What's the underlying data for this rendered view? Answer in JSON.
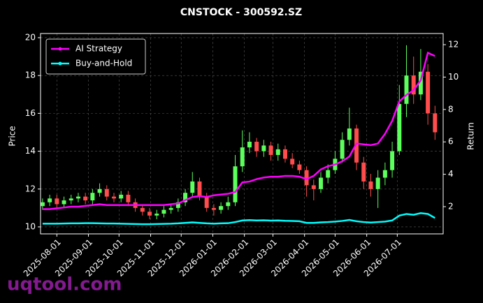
{
  "chart_data": {
    "type": "candlestick",
    "title": "CNSTOCK - 300592.SZ",
    "ylabel": "Price",
    "y2label": "Return",
    "watermark": "uqtool.com",
    "x": [
      "2025-07-18",
      "2025-07-25",
      "2025-08-01",
      "2025-08-08",
      "2025-08-15",
      "2025-08-22",
      "2025-08-29",
      "2025-09-05",
      "2025-09-12",
      "2025-09-19",
      "2025-09-26",
      "2025-10-03",
      "2025-10-10",
      "2025-10-17",
      "2025-10-24",
      "2025-10-31",
      "2025-11-07",
      "2025-11-14",
      "2025-11-21",
      "2025-11-28",
      "2025-12-05",
      "2025-12-12",
      "2025-12-19",
      "2025-12-26",
      "2026-01-02",
      "2026-01-09",
      "2026-01-16",
      "2026-01-23",
      "2026-01-30",
      "2026-02-06",
      "2026-02-13",
      "2026-02-20",
      "2026-02-27",
      "2026-03-06",
      "2026-03-13",
      "2026-03-20",
      "2026-03-27",
      "2026-04-03",
      "2026-04-10",
      "2026-04-17",
      "2026-04-24",
      "2026-05-01",
      "2026-05-08",
      "2026-05-15",
      "2026-05-22",
      "2026-05-29",
      "2026-06-05",
      "2026-06-12",
      "2026-06-19",
      "2026-06-26",
      "2026-07-03",
      "2026-07-10",
      "2026-07-17",
      "2026-07-24",
      "2026-07-31",
      "2026-08-07"
    ],
    "ohlc": {
      "up_color": "#5cff5c",
      "down_color": "#ff4c4c",
      "open": [
        11.1,
        11.3,
        11.5,
        11.2,
        11.4,
        11.5,
        11.6,
        11.4,
        11.8,
        12.0,
        11.6,
        11.5,
        11.7,
        11.3,
        11.0,
        10.8,
        10.6,
        10.7,
        10.9,
        11.0,
        11.3,
        11.8,
        12.4,
        11.6,
        11.0,
        10.9,
        11.1,
        11.3,
        13.2,
        14.2,
        14.5,
        14.0,
        14.3,
        13.8,
        14.1,
        13.6,
        13.3,
        13.0,
        12.2,
        12.0,
        12.6,
        13.0,
        13.6,
        14.6,
        15.2,
        13.4,
        12.4,
        12.0,
        12.6,
        13.0,
        14.0,
        16.5,
        18.0,
        17.0,
        18.2,
        16.0
      ],
      "high": [
        11.5,
        11.7,
        11.7,
        11.6,
        11.7,
        11.8,
        11.8,
        12.0,
        12.3,
        12.2,
        11.8,
        11.9,
        11.9,
        11.5,
        11.2,
        11.0,
        10.9,
        11.1,
        11.2,
        11.5,
        12.0,
        12.9,
        12.6,
        11.8,
        11.2,
        11.3,
        11.6,
        13.8,
        15.1,
        15.0,
        14.7,
        14.6,
        14.5,
        14.4,
        14.3,
        13.9,
        13.5,
        13.2,
        12.5,
        12.9,
        13.3,
        14.0,
        15.0,
        16.3,
        15.4,
        13.7,
        12.8,
        13.0,
        13.4,
        14.5,
        17.5,
        19.6,
        19.0,
        19.4,
        18.6,
        16.4
      ],
      "low": [
        10.9,
        11.1,
        11.0,
        11.0,
        11.2,
        11.3,
        11.2,
        11.2,
        11.6,
        11.4,
        11.3,
        11.3,
        11.1,
        10.8,
        10.6,
        10.4,
        10.4,
        10.5,
        10.7,
        10.8,
        11.1,
        11.6,
        11.4,
        10.8,
        10.6,
        10.7,
        10.9,
        11.1,
        12.9,
        13.9,
        13.7,
        13.7,
        13.5,
        13.5,
        13.4,
        13.1,
        12.8,
        11.6,
        11.4,
        11.8,
        12.3,
        12.8,
        13.4,
        14.3,
        13.0,
        12.0,
        11.6,
        11.0,
        12.2,
        12.6,
        13.8,
        15.8,
        16.5,
        16.7,
        15.4,
        14.6
      ],
      "close": [
        11.3,
        11.5,
        11.2,
        11.4,
        11.5,
        11.6,
        11.4,
        11.8,
        12.0,
        11.6,
        11.5,
        11.7,
        11.3,
        11.0,
        10.8,
        10.6,
        10.7,
        10.9,
        11.0,
        11.3,
        11.8,
        12.4,
        11.6,
        11.0,
        10.9,
        11.1,
        11.3,
        13.2,
        14.2,
        14.5,
        14.0,
        14.3,
        13.8,
        14.1,
        13.6,
        13.3,
        13.0,
        12.2,
        12.0,
        12.6,
        13.0,
        13.6,
        14.6,
        15.2,
        13.4,
        12.4,
        12.0,
        12.6,
        13.0,
        14.0,
        16.5,
        18.0,
        17.0,
        18.2,
        16.0,
        15.0
      ]
    },
    "series": [
      {
        "name": "AI Strategy",
        "color": "#ff00ff",
        "axis": "y2",
        "values": [
          1.85,
          1.85,
          1.9,
          1.95,
          2.0,
          2.0,
          2.05,
          2.1,
          2.15,
          2.1,
          2.1,
          2.1,
          2.1,
          2.1,
          2.1,
          2.1,
          2.1,
          2.1,
          2.15,
          2.2,
          2.4,
          2.6,
          2.65,
          2.6,
          2.7,
          2.75,
          2.8,
          2.9,
          3.5,
          3.55,
          3.7,
          3.8,
          3.85,
          3.85,
          3.9,
          3.9,
          3.85,
          3.7,
          3.9,
          4.3,
          4.5,
          4.6,
          4.8,
          5.1,
          5.9,
          5.85,
          5.8,
          5.9,
          6.5,
          7.3,
          8.5,
          8.9,
          9.2,
          9.8,
          11.5,
          11.3
        ]
      },
      {
        "name": "Buy-and-Hold",
        "color": "#00ffff",
        "axis": "y2",
        "values": [
          0.95,
          0.95,
          0.95,
          0.96,
          0.97,
          0.97,
          0.98,
          0.98,
          0.97,
          0.96,
          0.96,
          0.95,
          0.94,
          0.93,
          0.92,
          0.92,
          0.93,
          0.94,
          0.95,
          0.97,
          1.0,
          1.03,
          1.0,
          0.97,
          0.95,
          0.97,
          0.98,
          1.05,
          1.15,
          1.17,
          1.15,
          1.16,
          1.14,
          1.15,
          1.13,
          1.12,
          1.1,
          1.0,
          1.0,
          1.03,
          1.05,
          1.08,
          1.12,
          1.18,
          1.1,
          1.05,
          1.02,
          1.05,
          1.08,
          1.15,
          1.45,
          1.55,
          1.5,
          1.6,
          1.55,
          1.3
        ]
      }
    ],
    "xlim": [
      "2025-07-16",
      "2026-08-15"
    ],
    "xticks": [
      "2025-08-01",
      "2025-09-01",
      "2025-10-01",
      "2025-11-01",
      "2025-12-01",
      "2026-01-01",
      "2026-02-01",
      "2026-03-01",
      "2026-04-01",
      "2026-05-01",
      "2026-06-01",
      "2026-07-01"
    ],
    "ylim": [
      9.63,
      20.22
    ],
    "yticks": [
      10,
      12,
      14,
      16,
      18,
      20
    ],
    "y2lim": [
      0.32,
      12.69
    ],
    "y2ticks": [
      2,
      4,
      6,
      8,
      10,
      12
    ],
    "grid": true,
    "legend": "upper left"
  }
}
